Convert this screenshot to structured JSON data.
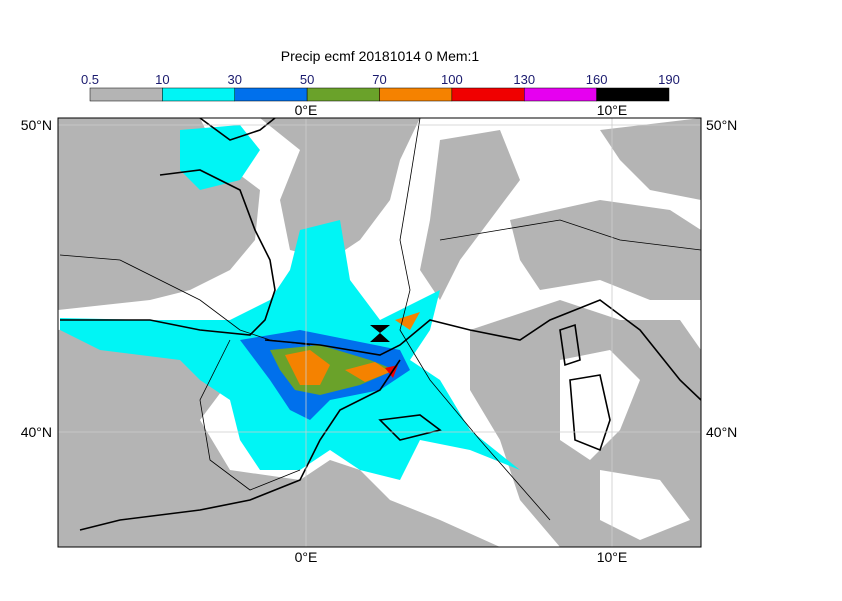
{
  "title": "Precip ecmf 20181014 0 Mem:1",
  "colorbar": {
    "levels": [
      0.5,
      10,
      30,
      50,
      70,
      100,
      130,
      160,
      190
    ],
    "colors": [
      "#b4b4b4",
      "#00f5f5",
      "#0070ec",
      "#6aa22a",
      "#f58200",
      "#f00000",
      "#e600f0",
      "#000000"
    ]
  },
  "lon_labels": [
    "0°E",
    "10°E"
  ],
  "lat_labels": [
    "50°N",
    "40°N"
  ]
}
